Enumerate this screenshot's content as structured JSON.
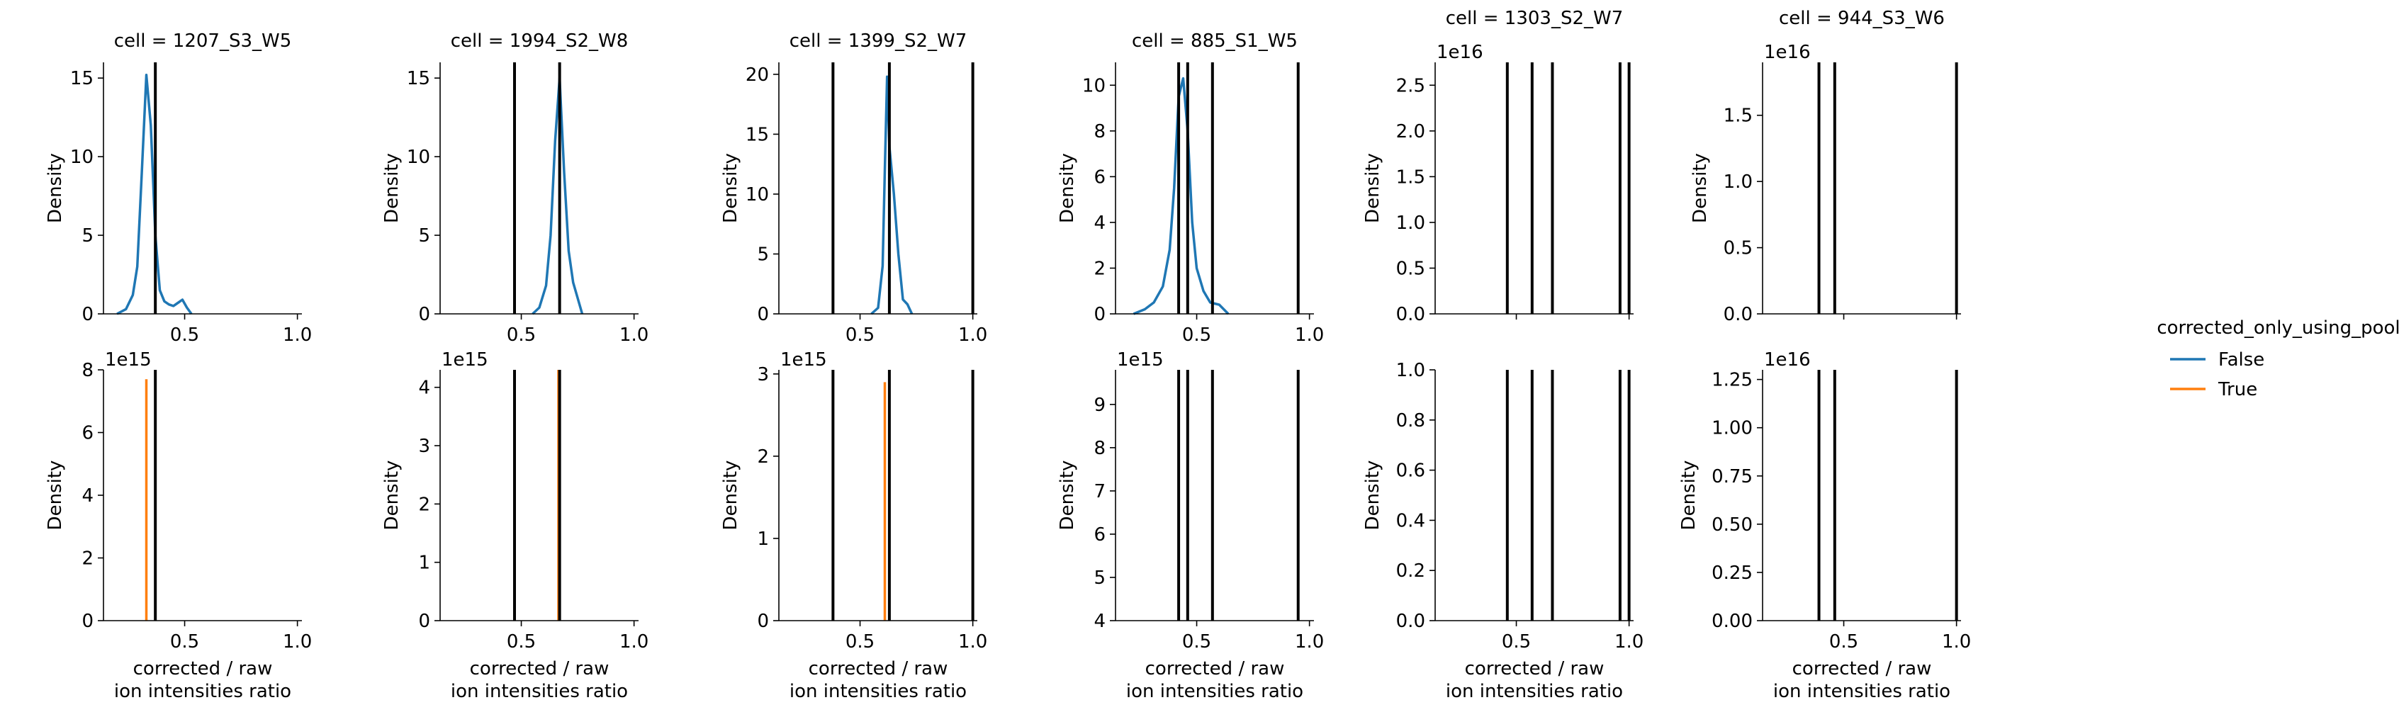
{
  "legend": {
    "title": "corrected_only_using_pool",
    "entries": [
      {
        "label": "False",
        "color": "#1f77b4"
      },
      {
        "label": "True",
        "color": "#ff7f0e"
      }
    ],
    "placement": "right"
  },
  "chart_data": [
    {
      "type": "line",
      "row": 0,
      "title": "cell = 1207_S3_W5",
      "ylabel": "Density",
      "xlabel": "",
      "xlim": [
        0.14,
        1.02
      ],
      "ylim": [
        0,
        16
      ],
      "yticks": [
        "0",
        "5",
        "10",
        "15"
      ],
      "ytick_values": [
        0,
        5,
        10,
        15
      ],
      "xticks": [
        "0.5",
        "1.0"
      ],
      "xtick_values": [
        0.5,
        1.0
      ],
      "offset_text": "",
      "vlines": [
        0.37
      ],
      "series": [
        {
          "name": "False",
          "color": "#1f77b4",
          "x": [
            0.2,
            0.24,
            0.27,
            0.29,
            0.31,
            0.33,
            0.35,
            0.37,
            0.39,
            0.41,
            0.43,
            0.45,
            0.47,
            0.49,
            0.51,
            0.53
          ],
          "y": [
            0,
            0.3,
            1.2,
            3.0,
            9.0,
            15.2,
            12.0,
            5.0,
            1.5,
            0.8,
            0.6,
            0.5,
            0.7,
            0.9,
            0.4,
            0
          ]
        }
      ]
    },
    {
      "type": "line",
      "row": 0,
      "title": "cell = 1994_S2_W8",
      "ylabel": "Density",
      "xlabel": "",
      "xlim": [
        0.14,
        1.02
      ],
      "ylim": [
        0,
        16
      ],
      "yticks": [
        "0",
        "5",
        "10",
        "15"
      ],
      "ytick_values": [
        0,
        5,
        10,
        15
      ],
      "xticks": [
        "0.5",
        "1.0"
      ],
      "xtick_values": [
        0.5,
        1.0
      ],
      "offset_text": "",
      "vlines": [
        0.47,
        0.67
      ],
      "series": [
        {
          "name": "False",
          "color": "#1f77b4",
          "x": [
            0.55,
            0.58,
            0.61,
            0.63,
            0.65,
            0.67,
            0.69,
            0.71,
            0.73,
            0.75,
            0.77
          ],
          "y": [
            0,
            0.4,
            1.8,
            5.0,
            11.0,
            15.0,
            9.0,
            4.0,
            2.0,
            1.0,
            0
          ]
        }
      ]
    },
    {
      "type": "line",
      "row": 0,
      "title": "cell = 1399_S2_W7",
      "ylabel": "Density",
      "xlabel": "",
      "xlim": [
        0.14,
        1.02
      ],
      "ylim": [
        0,
        21
      ],
      "yticks": [
        "0",
        "5",
        "10",
        "15",
        "20"
      ],
      "ytick_values": [
        0,
        5,
        10,
        15,
        20
      ],
      "xticks": [
        "0.5",
        "1.0"
      ],
      "xtick_values": [
        0.5,
        1.0
      ],
      "offset_text": "",
      "vlines": [
        0.38,
        0.63,
        1.0
      ],
      "series": [
        {
          "name": "False",
          "color": "#1f77b4",
          "x": [
            0.55,
            0.58,
            0.6,
            0.61,
            0.62,
            0.63,
            0.65,
            0.67,
            0.69,
            0.71,
            0.73
          ],
          "y": [
            0,
            0.5,
            4.0,
            12.0,
            19.8,
            14.0,
            10.0,
            5.0,
            1.2,
            0.8,
            0
          ]
        }
      ]
    },
    {
      "type": "line",
      "row": 0,
      "title": "cell = 885_S1_W5",
      "ylabel": "Density",
      "xlabel": "",
      "xlim": [
        0.14,
        1.02
      ],
      "ylim": [
        0,
        11
      ],
      "yticks": [
        "0",
        "2",
        "4",
        "6",
        "8",
        "10"
      ],
      "ytick_values": [
        0,
        2,
        4,
        6,
        8,
        10
      ],
      "xticks": [
        "0.5",
        "1.0"
      ],
      "xtick_values": [
        0.5,
        1.0
      ],
      "offset_text": "",
      "vlines": [
        0.42,
        0.46,
        0.57,
        0.95
      ],
      "series": [
        {
          "name": "False",
          "color": "#1f77b4",
          "x": [
            0.22,
            0.27,
            0.31,
            0.35,
            0.38,
            0.4,
            0.42,
            0.44,
            0.46,
            0.48,
            0.5,
            0.53,
            0.56,
            0.58,
            0.6,
            0.62,
            0.64
          ],
          "y": [
            0,
            0.2,
            0.5,
            1.2,
            2.8,
            5.5,
            9.5,
            10.3,
            8.0,
            4.0,
            2.0,
            1.0,
            0.5,
            0.45,
            0.4,
            0.2,
            0
          ]
        }
      ]
    },
    {
      "type": "line",
      "row": 0,
      "title": "cell = 1303_S2_W7",
      "ylabel": "Density",
      "xlabel": "",
      "xlim": [
        0.14,
        1.02
      ],
      "ylim": [
        0,
        2.75
      ],
      "yticks": [
        "0.0",
        "0.5",
        "1.0",
        "1.5",
        "2.0",
        "2.5"
      ],
      "ytick_values": [
        0,
        0.5,
        1.0,
        1.5,
        2.0,
        2.5
      ],
      "xticks": [],
      "xtick_values": [],
      "offset_text": "1e16",
      "vlines": [
        0.46,
        0.57,
        0.66,
        0.96,
        1.0
      ],
      "series": []
    },
    {
      "type": "line",
      "row": 0,
      "title": "cell = 944_S3_W6",
      "ylabel": "Density",
      "xlabel": "",
      "xlim": [
        0.14,
        1.02
      ],
      "ylim": [
        0,
        1.9
      ],
      "yticks": [
        "0.0",
        "0.5",
        "1.0",
        "1.5"
      ],
      "ytick_values": [
        0,
        0.5,
        1.0,
        1.5
      ],
      "xticks": [],
      "xtick_values": [],
      "offset_text": "1e16",
      "vlines": [
        0.39,
        0.46,
        1.0
      ],
      "series": []
    },
    {
      "type": "line",
      "row": 1,
      "title": "",
      "ylabel": "Density",
      "xlabel": "corrected / raw\nion intensities ratio",
      "xlim": [
        0.14,
        1.02
      ],
      "ylim": [
        0,
        8
      ],
      "yticks": [
        "0",
        "2",
        "4",
        "6",
        "8"
      ],
      "ytick_values": [
        0,
        2,
        4,
        6,
        8
      ],
      "xticks": [
        "0.5",
        "1.0"
      ],
      "xtick_values": [
        0.5,
        1.0
      ],
      "offset_text": "1e15",
      "vlines": [
        0.37
      ],
      "series": [
        {
          "name": "True",
          "color": "#ff7f0e",
          "x": [
            0.33,
            0.33
          ],
          "y": [
            0,
            7.7
          ]
        }
      ]
    },
    {
      "type": "line",
      "row": 1,
      "title": "",
      "ylabel": "Density",
      "xlabel": "corrected / raw\nion intensities ratio",
      "xlim": [
        0.14,
        1.02
      ],
      "ylim": [
        0,
        4.3
      ],
      "yticks": [
        "0",
        "1",
        "2",
        "3",
        "4"
      ],
      "ytick_values": [
        0,
        1,
        2,
        3,
        4
      ],
      "xticks": [
        "0.5",
        "1.0"
      ],
      "xtick_values": [
        0.5,
        1.0
      ],
      "offset_text": "1e15",
      "vlines": [
        0.47,
        0.67
      ],
      "series": [
        {
          "name": "True",
          "color": "#ff7f0e",
          "x": [
            0.665,
            0.665
          ],
          "y": [
            0,
            4.3
          ]
        }
      ]
    },
    {
      "type": "line",
      "row": 1,
      "title": "",
      "ylabel": "Density",
      "xlabel": "corrected / raw\nion intensities ratio",
      "xlim": [
        0.14,
        1.02
      ],
      "ylim": [
        0,
        3.05
      ],
      "yticks": [
        "0",
        "1",
        "2",
        "3"
      ],
      "ytick_values": [
        0,
        1,
        2,
        3
      ],
      "xticks": [
        "0.5",
        "1.0"
      ],
      "xtick_values": [
        0.5,
        1.0
      ],
      "offset_text": "1e15",
      "vlines": [
        0.38,
        0.63,
        1.0
      ],
      "series": [
        {
          "name": "True",
          "color": "#ff7f0e",
          "x": [
            0.61,
            0.61
          ],
          "y": [
            0,
            2.9
          ]
        }
      ]
    },
    {
      "type": "line",
      "row": 1,
      "title": "",
      "ylabel": "Density",
      "xlabel": "corrected / raw\nion intensities ratio",
      "xlim": [
        0.14,
        1.02
      ],
      "ylim": [
        4,
        9.8
      ],
      "yticks": [
        "4",
        "5",
        "6",
        "7",
        "8",
        "9"
      ],
      "ytick_values": [
        4,
        5,
        6,
        7,
        8,
        9
      ],
      "xticks": [
        "0.5",
        "1.0"
      ],
      "xtick_values": [
        0.5,
        1.0
      ],
      "offset_text": "1e15",
      "vlines": [
        0.42,
        0.46,
        0.57,
        0.95
      ],
      "series": []
    },
    {
      "type": "line",
      "row": 1,
      "title": "",
      "ylabel": "Density",
      "xlabel": "corrected / raw\nion intensities ratio",
      "xlim": [
        0.14,
        1.02
      ],
      "ylim": [
        0,
        1.0
      ],
      "yticks": [
        "0.0",
        "0.2",
        "0.4",
        "0.6",
        "0.8",
        "1.0"
      ],
      "ytick_values": [
        0,
        0.2,
        0.4,
        0.6,
        0.8,
        1.0
      ],
      "xticks": [
        "0.5",
        "1.0"
      ],
      "xtick_values": [
        0.5,
        1.0
      ],
      "offset_text": "",
      "vlines": [
        0.46,
        0.57,
        0.66,
        0.96,
        1.0
      ],
      "series": []
    },
    {
      "type": "line",
      "row": 1,
      "title": "",
      "ylabel": "Density",
      "xlabel": "corrected / raw\nion intensities ratio",
      "xlim": [
        0.14,
        1.02
      ],
      "ylim": [
        0,
        1.3
      ],
      "yticks": [
        "0.00",
        "0.25",
        "0.50",
        "0.75",
        "1.00",
        "1.25"
      ],
      "ytick_values": [
        0,
        0.25,
        0.5,
        0.75,
        1.0,
        1.25
      ],
      "xticks": [
        "0.5",
        "1.0"
      ],
      "xtick_values": [
        0.5,
        1.0
      ],
      "offset_text": "1e16",
      "vlines": [
        0.39,
        0.46,
        1.0
      ],
      "series": []
    }
  ]
}
